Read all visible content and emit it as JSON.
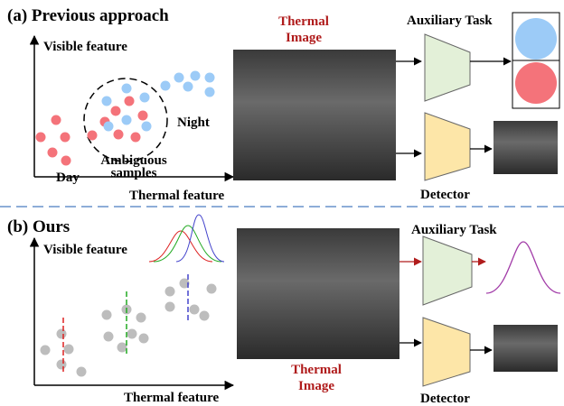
{
  "panel_a": {
    "label": "(a) Previous approach",
    "y_axis": "Visible feature",
    "x_axis": "Thermal feature",
    "day": "Day",
    "night": "Night",
    "ambiguous": [
      "Ambiguous",
      "samples"
    ],
    "image_label": [
      "Thermal",
      "Image"
    ],
    "aux_task": "Auxiliary Task",
    "detector": "Detector"
  },
  "panel_b": {
    "label": "(b) Ours",
    "y_axis": "Visible feature",
    "x_axis": "Thermal feature",
    "image_label": [
      "Thermal",
      "Image"
    ],
    "aux_task": "Auxiliary Task",
    "detector": "Detector"
  }
}
